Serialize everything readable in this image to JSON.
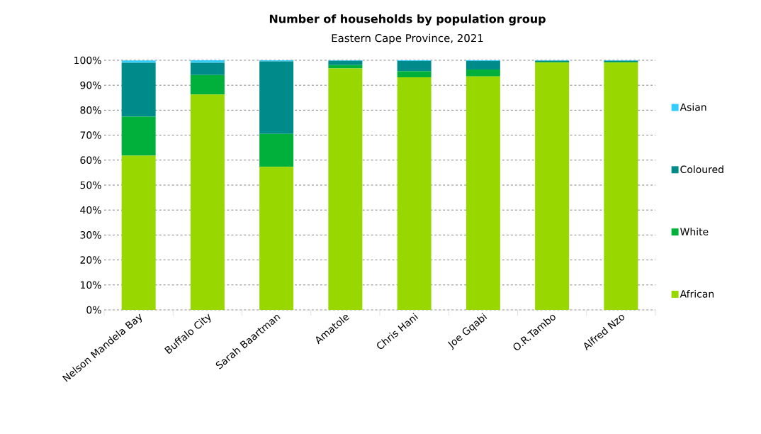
{
  "chart_data": {
    "type": "bar",
    "stacked": true,
    "title": "Number of households by population group",
    "subtitle": "Eastern Cape Province, 2021",
    "categories": [
      "Nelson Mandela Bay",
      "Buffalo City",
      "Sarah Baartman",
      "Amatole",
      "Chris Hani",
      "Joe Gqabi",
      "O.R.Tambo",
      "Alfred Nzo"
    ],
    "series": [
      {
        "name": "African",
        "color": "#99d700",
        "values": [
          61.8,
          86.3,
          57.3,
          96.7,
          93.2,
          93.5,
          99.1,
          99.1
        ]
      },
      {
        "name": "White",
        "color": "#00b03a",
        "values": [
          15.6,
          7.8,
          13.2,
          1.4,
          2.4,
          2.8,
          0.3,
          0.3
        ]
      },
      {
        "name": "Coloured",
        "color": "#008b8b",
        "values": [
          21.6,
          4.9,
          29.1,
          1.7,
          4.1,
          3.4,
          0.4,
          0.4
        ]
      },
      {
        "name": "Asian",
        "color": "#33ccff",
        "values": [
          0.9,
          1.0,
          0.4,
          0.2,
          0.3,
          0.3,
          0.2,
          0.2
        ]
      }
    ],
    "ylim": [
      0,
      100
    ],
    "yticks": [
      {
        "value": 0,
        "label": "0%"
      },
      {
        "value": 10,
        "label": "10%"
      },
      {
        "value": 20,
        "label": "20%"
      },
      {
        "value": 30,
        "label": "30%"
      },
      {
        "value": 40,
        "label": "40%"
      },
      {
        "value": 50,
        "label": "50%"
      },
      {
        "value": 60,
        "label": "60%"
      },
      {
        "value": 70,
        "label": "70%"
      },
      {
        "value": 80,
        "label": "80%"
      },
      {
        "value": 90,
        "label": "90%"
      },
      {
        "value": 100,
        "label": "100%"
      }
    ],
    "grid": "y",
    "legend": "right"
  }
}
